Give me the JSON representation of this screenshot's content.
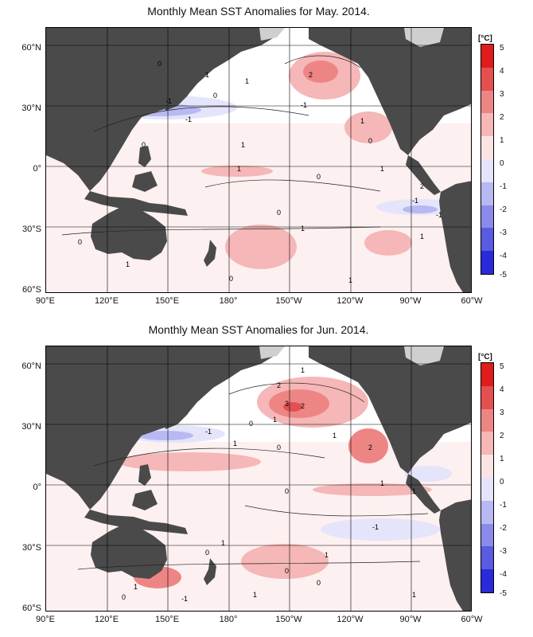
{
  "maps": [
    {
      "title": "Monthly Mean SST Anomalies for May. 2014.",
      "lat_labels": [
        "60°N",
        "30°N",
        "0°",
        "30°S",
        "60°S"
      ],
      "lon_labels": [
        "90°E",
        "120°E",
        "150°E",
        "180°",
        "150°W",
        "120°W",
        "90°W",
        "60°W"
      ],
      "colorbar": {
        "unit": "[°C]",
        "ticks": [
          "5",
          "4",
          "3",
          "2",
          "1",
          "0",
          "-1",
          "-2",
          "-3",
          "-4",
          "-5"
        ]
      },
      "contour_labels": [
        "0",
        "1",
        "2",
        "-1",
        "0",
        "1",
        "-1",
        "0",
        "1",
        "-1",
        "1",
        "0",
        "1",
        "0",
        "1",
        "2",
        "-1",
        "-1",
        "1",
        "0",
        "1",
        "0",
        "1",
        "0",
        "1"
      ]
    },
    {
      "title": "Monthly Mean SST Anomalies for Jun. 2014.",
      "lat_labels": [
        "60°N",
        "30°N",
        "0°",
        "30°S",
        "60°S"
      ],
      "lon_labels": [
        "90°E",
        "120°E",
        "150°E",
        "180°",
        "150°W",
        "120°W",
        "90°W",
        "60°W"
      ],
      "colorbar": {
        "unit": "[°C]",
        "ticks": [
          "5",
          "4",
          "3",
          "2",
          "1",
          "0",
          "-1",
          "-2",
          "-3",
          "-4",
          "-5"
        ]
      },
      "contour_labels": [
        "1",
        "2",
        "3",
        "2",
        "1",
        "0",
        "-1",
        "1",
        "0",
        "1",
        "2",
        "1",
        "1",
        "0",
        "-1",
        "1",
        "0",
        "1",
        "0",
        "1",
        "0",
        "-1",
        "1",
        "0",
        "1"
      ]
    }
  ],
  "colors": {
    "land": "#4a4a4a",
    "ice": "#cfcfcf",
    "warm": [
      "#fbe3e3",
      "#f5b7b7",
      "#ee8585",
      "#e45050",
      "#e01c1c"
    ],
    "cool": [
      "#e4e4fb",
      "#b8b8f3",
      "#8a8aeb",
      "#5a5ae3",
      "#2a2adb"
    ]
  }
}
